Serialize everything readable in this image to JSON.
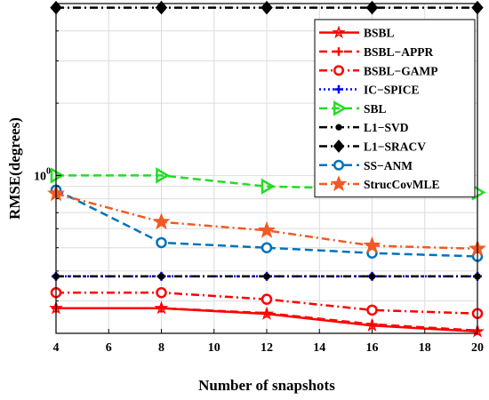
{
  "chart_data": {
    "type": "line",
    "title": "",
    "xlabel": "Number of snapshots",
    "ylabel": "RMSE(degrees)",
    "x": [
      4,
      8,
      12,
      16,
      20
    ],
    "xlim": [
      4,
      20
    ],
    "xticks": [
      "4",
      "6",
      "8",
      "10",
      "12",
      "14",
      "16",
      "18",
      "20"
    ],
    "ylim": [
      0.22,
      5.2
    ],
    "yscale": "log",
    "ytick_label": {
      "base": "10",
      "exp": "0"
    },
    "grid": true,
    "legend_position": "top-right",
    "series": [
      {
        "name": "BSBL",
        "color": "#ff0000",
        "dash": "solid",
        "marker": "star-small",
        "x": [
          4,
          8,
          12,
          16,
          20
        ],
        "values": [
          0.28,
          0.28,
          0.265,
          0.237,
          0.224
        ]
      },
      {
        "name": "BSBL−APPR",
        "color": "#ff0000",
        "dash": "dash",
        "marker": "plus",
        "x": [
          4,
          8,
          12,
          16,
          20
        ],
        "values": [
          0.28,
          0.28,
          0.267,
          0.24,
          0.226
        ]
      },
      {
        "name": "BSBL−GAMP",
        "color": "#ff0000",
        "dash": "dashdot",
        "marker": "circle",
        "x": [
          4,
          8,
          12,
          16,
          20
        ],
        "values": [
          0.325,
          0.325,
          0.305,
          0.275,
          0.266
        ]
      },
      {
        "name": "IC−SPICE",
        "color": "#0000ff",
        "dash": "dot",
        "marker": "plus",
        "x": [
          4,
          8,
          12,
          16,
          20
        ],
        "values": [
          0.38,
          0.38,
          0.38,
          0.38,
          0.38
        ]
      },
      {
        "name": "SBL",
        "color": "#22dd22",
        "dash": "dash",
        "marker": "triangle-right",
        "x": [
          4,
          8,
          12,
          16,
          20
        ],
        "values": [
          1.0,
          1.0,
          0.9,
          0.88,
          0.85
        ]
      },
      {
        "name": "L1−SVD",
        "color": "#000000",
        "dash": "dashdot",
        "marker": "dot",
        "x": [
          4,
          8,
          12,
          16,
          20
        ],
        "values": [
          0.38,
          0.38,
          0.38,
          0.38,
          0.38
        ]
      },
      {
        "name": "L1−SRACV",
        "color": "#000000",
        "dash": "dashdot",
        "marker": "diamond",
        "x": [
          4,
          8,
          12,
          16,
          20
        ],
        "values": [
          5.0,
          5.0,
          5.0,
          5.0,
          5.0
        ]
      },
      {
        "name": "SS−ANM",
        "color": "#0072bd",
        "dash": "dash",
        "marker": "circle",
        "x": [
          4,
          8,
          12,
          16,
          20
        ],
        "values": [
          0.87,
          0.525,
          0.5,
          0.475,
          0.46
        ]
      },
      {
        "name": "StrucCovMLE",
        "color": "#f05a23",
        "dash": "dashdot",
        "marker": "star",
        "x": [
          4,
          8,
          12,
          16,
          20
        ],
        "values": [
          0.84,
          0.64,
          0.59,
          0.51,
          0.495
        ]
      }
    ]
  }
}
